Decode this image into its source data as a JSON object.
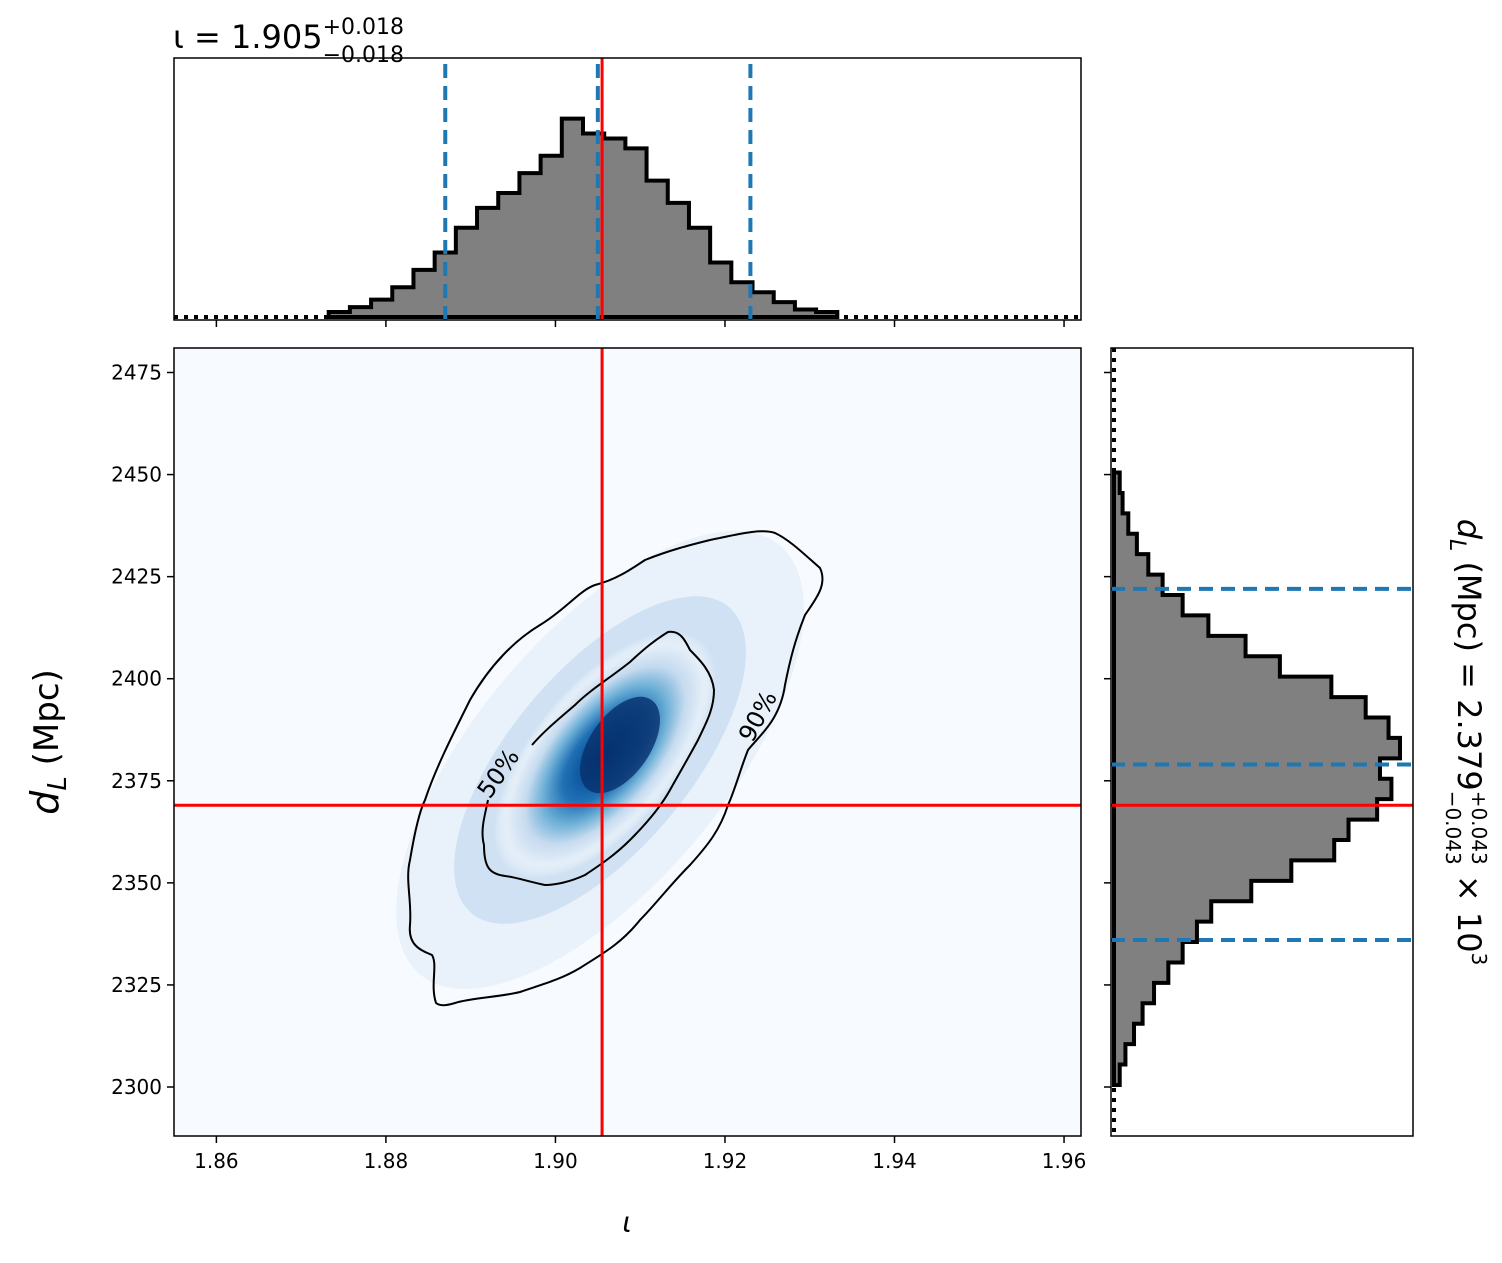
{
  "chart_data": [
    {
      "type": "histogram",
      "parameter": "ι",
      "title": {
        "prefix": "ι = 1.905",
        "sup": "+0.018",
        "sub": "−0.018"
      },
      "x": [
        1.8745,
        1.877,
        1.8795,
        1.882,
        1.8845,
        1.887,
        1.8895,
        1.892,
        1.8945,
        1.897,
        1.8995,
        1.902,
        1.9045,
        1.907,
        1.9095,
        1.912,
        1.9145,
        1.917,
        1.9195,
        1.922,
        1.9245,
        1.927,
        1.9295,
        1.932
      ],
      "counts": [
        0.02,
        0.04,
        0.07,
        0.12,
        0.19,
        0.26,
        0.36,
        0.44,
        0.5,
        0.58,
        0.65,
        0.8,
        0.74,
        0.72,
        0.68,
        0.55,
        0.46,
        0.36,
        0.22,
        0.14,
        0.1,
        0.06,
        0.03,
        0.02
      ],
      "xlim": [
        1.855,
        1.962
      ],
      "ylim": [
        0,
        1
      ],
      "quantiles": [
        1.887,
        1.905,
        1.923
      ],
      "truth": 1.9055,
      "quantile_color": "#1f77b4",
      "truth_color": "#ff0000",
      "fill_color": "#808080"
    },
    {
      "type": "heatmap",
      "xlabel": "ι",
      "ylabel": "d_L (Mpc)",
      "xlim": [
        1.855,
        1.962
      ],
      "ylim": [
        2288,
        2481
      ],
      "xticks": [
        "1.86",
        "1.88",
        "1.90",
        "1.92",
        "1.94",
        "1.96"
      ],
      "yticks": [
        "2300",
        "2325",
        "2350",
        "2375",
        "2400",
        "2425",
        "2450",
        "2475"
      ],
      "contour_labels": [
        "50%",
        "90%"
      ],
      "truth": {
        "x": 1.9055,
        "y": 2369
      },
      "peak": {
        "x": 1.903,
        "y": 2383
      },
      "colormap": "Blues"
    },
    {
      "type": "histogram",
      "orientation": "horizontal",
      "parameter": "d_L (Mpc)",
      "label": {
        "prefix": "d",
        "subscript": "L",
        "middle": " (Mpc) = 2.379",
        "sup": "+0.043",
        "sub": "−0.043",
        "suffix": " × 10",
        "exp": "3"
      },
      "y": [
        2303,
        2308,
        2313,
        2318,
        2323,
        2328,
        2333,
        2338,
        2343,
        2348,
        2353,
        2358,
        2363,
        2368,
        2373,
        2378,
        2383,
        2388,
        2393,
        2398,
        2403,
        2408,
        2413,
        2418,
        2423,
        2428,
        2433,
        2438,
        2443,
        2448
      ],
      "counts": [
        0.02,
        0.04,
        0.07,
        0.1,
        0.14,
        0.19,
        0.24,
        0.29,
        0.34,
        0.48,
        0.62,
        0.77,
        0.82,
        0.92,
        0.97,
        0.93,
        1.0,
        0.96,
        0.88,
        0.76,
        0.58,
        0.46,
        0.33,
        0.24,
        0.17,
        0.12,
        0.08,
        0.05,
        0.03,
        0.02
      ],
      "ylim": [
        2288,
        2481
      ],
      "xlim": [
        0,
        1
      ],
      "quantiles": [
        2336,
        2379,
        2422
      ],
      "truth": 2369,
      "quantile_color": "#1f77b4",
      "truth_color": "#ff0000",
      "fill_color": "#808080"
    }
  ]
}
